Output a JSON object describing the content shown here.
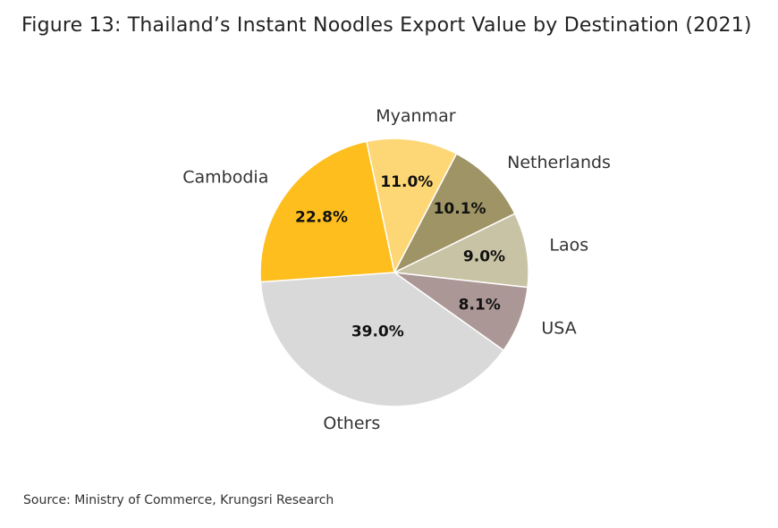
{
  "header": {
    "title": "Figure 13: Thailand’s Instant Noodles Export Value by Destination (2021)"
  },
  "footer": {
    "source": "Source: Ministry of Commerce, Krungsri Research"
  },
  "chart_data": {
    "type": "pie",
    "title": "Figure 13: Thailand’s Instant Noodles Export Value by Destination (2021)",
    "unit": "%",
    "start_angle_deg": -12,
    "direction": "clockwise",
    "slices": [
      {
        "label": "Myanmar",
        "value": 11.0,
        "display": "11.0%",
        "color": "#FDD776"
      },
      {
        "label": "Netherlands",
        "value": 10.1,
        "display": "10.1%",
        "color": "#9E9465"
      },
      {
        "label": "Laos",
        "value": 9.0,
        "display": "9.0%",
        "color": "#C9C3A5"
      },
      {
        "label": "USA",
        "value": 8.1,
        "display": "8.1%",
        "color": "#AB9896"
      },
      {
        "label": "Others",
        "value": 39.0,
        "display": "39.0%",
        "color": "#D9D9D9"
      },
      {
        "label": "Cambodia",
        "value": 22.8,
        "display": "22.8%",
        "color": "#FDBE1E"
      }
    ]
  }
}
